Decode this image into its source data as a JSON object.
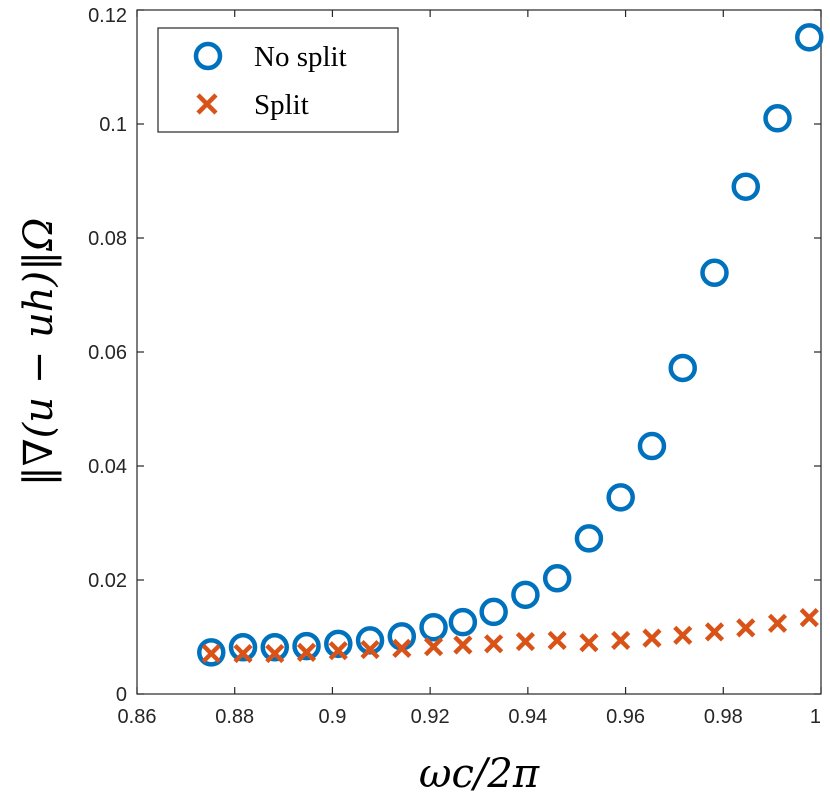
{
  "chart_data": {
    "type": "scatter",
    "xlabel": "ωc/2π",
    "ylabel": "‖∇(u − uh)‖Ω",
    "xlim": [
      0.86,
      1.0
    ],
    "ylim": [
      0,
      0.12
    ],
    "x_ticks": [
      "0.86",
      "0.88",
      "0.9",
      "0.92",
      "0.94",
      "0.96",
      "0.98",
      "1"
    ],
    "y_ticks": [
      "0",
      "0.02",
      "0.04",
      "0.06",
      "0.08",
      "0.1",
      "0.12"
    ],
    "x_tick_values": [
      0.86,
      0.88,
      0.9,
      0.92,
      0.94,
      0.96,
      0.98,
      1.0
    ],
    "y_tick_values": [
      0,
      0.02,
      0.04,
      0.06,
      0.08,
      0.1,
      0.12
    ],
    "grid": false,
    "legend_position": "top-left",
    "x": [
      0.8752,
      0.8817,
      0.8882,
      0.8947,
      0.9012,
      0.9077,
      0.9142,
      0.9207,
      0.9267,
      0.933,
      0.9395,
      0.946,
      0.9525,
      0.959,
      0.9654,
      0.9717,
      0.9782,
      0.9846,
      0.9911,
      0.9976
    ],
    "series": [
      {
        "name": "No split",
        "marker": "circle",
        "color": "#0072BD",
        "values": [
          0.0073,
          0.0082,
          0.0082,
          0.0084,
          0.0088,
          0.0094,
          0.0101,
          0.0117,
          0.0126,
          0.0144,
          0.0174,
          0.0203,
          0.0273,
          0.0345,
          0.0435,
          0.0572,
          0.0739,
          0.089,
          0.101,
          0.1152
        ]
      },
      {
        "name": "Split",
        "marker": "x",
        "color": "#D95319",
        "values": [
          0.0071,
          0.0071,
          0.0071,
          0.0073,
          0.0076,
          0.0078,
          0.008,
          0.0083,
          0.0086,
          0.0088,
          0.0092,
          0.0094,
          0.009,
          0.0094,
          0.0098,
          0.0103,
          0.0109,
          0.0116,
          0.0124,
          0.0134
        ]
      }
    ]
  }
}
